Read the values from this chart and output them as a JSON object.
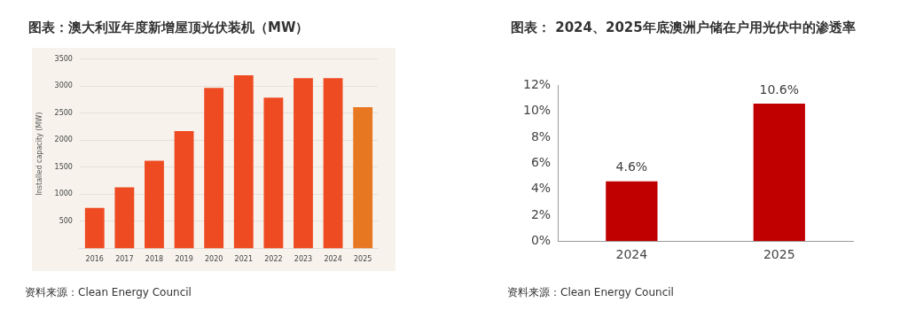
{
  "chart_data": [
    {
      "type": "bar",
      "title": "图表：澳大利亚年度新增屋顶光伏装机（MW）",
      "ylabel": "Installed capacity (MW)",
      "categories": [
        "2016",
        "2017",
        "2018",
        "2019",
        "2020",
        "2021",
        "2022",
        "2023",
        "2024",
        "2025"
      ],
      "values": [
        750,
        1130,
        1620,
        2170,
        2970,
        3200,
        2790,
        3150,
        3150,
        2610
      ],
      "colors": [
        "#ee4b22",
        "#ee4b22",
        "#ee4b22",
        "#ee4b22",
        "#ee4b22",
        "#ee4b22",
        "#ee4b22",
        "#ee4b22",
        "#ee4b22",
        "#e87722"
      ],
      "ylim": [
        0,
        3500
      ],
      "yticks": [
        500,
        1000,
        1500,
        2000,
        2500,
        3000,
        3500
      ],
      "grid": "y",
      "annotations": [
        "资料来源：Clean Energy Council"
      ]
    },
    {
      "type": "bar",
      "title": "图表： 2024、2025年底澳洲户储在户用光伏中的渗透率",
      "categories": [
        "2024",
        "2025"
      ],
      "values": [
        4.6,
        10.6
      ],
      "color": "#c00000",
      "ylim": [
        0,
        12
      ],
      "yticks": [
        {
          "value": 0,
          "label": "0%"
        },
        {
          "value": 2,
          "label": "2%"
        },
        {
          "value": 4,
          "label": "4%"
        },
        {
          "value": 6,
          "label": "6%"
        },
        {
          "value": 8,
          "label": "8%"
        },
        {
          "value": 10,
          "label": "10%"
        },
        {
          "value": 12,
          "label": "12%"
        }
      ],
      "grid": false,
      "value_labels": [
        "4.6%",
        "10.6%"
      ],
      "annotations": [
        "资料来源：Clean Energy Council"
      ]
    }
  ]
}
